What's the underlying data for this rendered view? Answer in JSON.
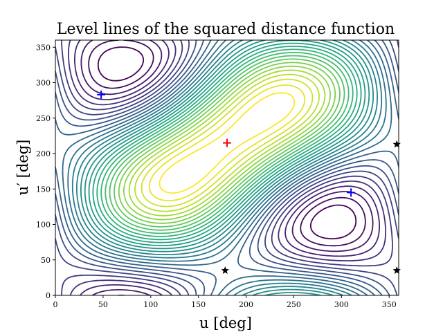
{
  "chart_data": {
    "type": "contour",
    "title": "Level lines of the squared distance function",
    "xlabel": "u [deg]",
    "ylabel": "u′ [deg]",
    "xlim": [
      0,
      360
    ],
    "ylim": [
      0,
      360
    ],
    "xticks": [
      "0",
      "50",
      "100",
      "150",
      "200",
      "250",
      "300",
      "350"
    ],
    "yticks": [
      "0",
      "50",
      "100",
      "150",
      "200",
      "250",
      "300",
      "350"
    ],
    "colormap": "viridis",
    "grid": false,
    "maximum_center": {
      "u": 180,
      "u_prime": 215
    },
    "contour_count": 30,
    "markers": [
      {
        "kind": "max",
        "symbol": "+",
        "color": "#ff0000",
        "u": 180,
        "u_prime": 215
      },
      {
        "kind": "min",
        "symbol": "+",
        "color": "#0000ff",
        "u": 48,
        "u_prime": 283
      },
      {
        "kind": "min",
        "symbol": "+",
        "color": "#0000ff",
        "u": 310,
        "u_prime": 145
      },
      {
        "kind": "saddle",
        "symbol": "star",
        "color": "#000000",
        "u": 178,
        "u_prime": 35
      },
      {
        "kind": "saddle",
        "symbol": "star",
        "color": "#000000",
        "u": 358,
        "u_prime": 213
      },
      {
        "kind": "saddle",
        "symbol": "star",
        "color": "#000000",
        "u": 358,
        "u_prime": 35
      }
    ]
  }
}
